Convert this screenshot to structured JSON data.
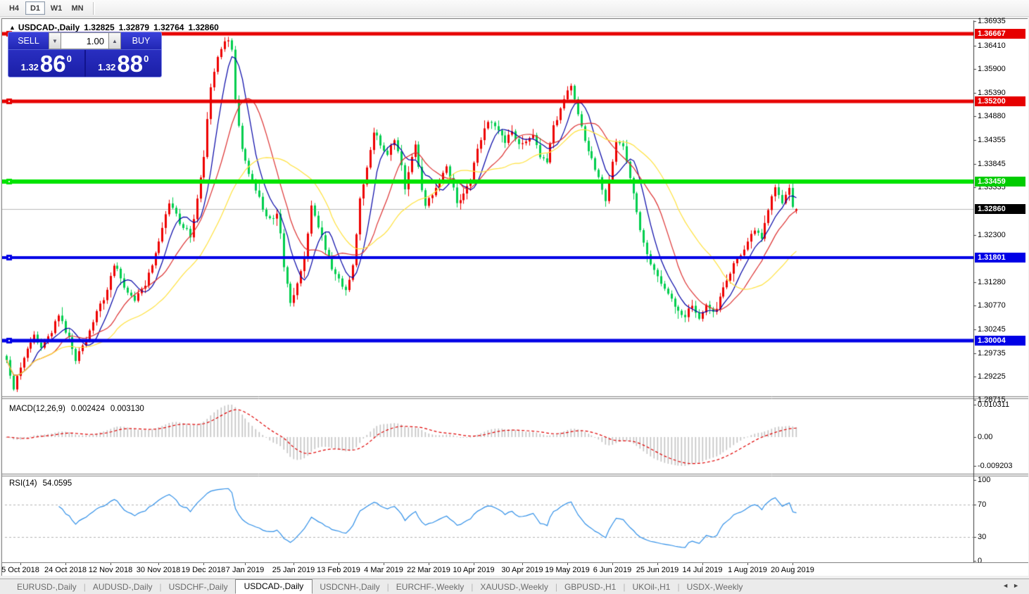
{
  "toolbar": {
    "timeframes": [
      {
        "label": "H4",
        "active": false
      },
      {
        "label": "D1",
        "active": true
      },
      {
        "label": "W1",
        "active": false
      },
      {
        "label": "MN",
        "active": false
      }
    ]
  },
  "chart": {
    "collapse_icon": "▲",
    "symbol_period": "USDCAD-,Daily",
    "ohlc": {
      "open": "1.32825",
      "high": "1.32879",
      "low": "1.32764",
      "close": "1.32860"
    }
  },
  "trade_panel": {
    "sell_label": "SELL",
    "buy_label": "BUY",
    "volume": "1.00",
    "spin_down_icon": "▼",
    "spin_up_icon": "▲",
    "sell_price": {
      "small": "1.32",
      "big": "86",
      "sup": "0"
    },
    "buy_price": {
      "small": "1.32",
      "big": "88",
      "sup": "0"
    }
  },
  "price_axis": {
    "ticks": [
      "1.36935",
      "1.36410",
      "1.35900",
      "1.35390",
      "1.34880",
      "1.34355",
      "1.33845",
      "1.33335",
      "1.32300",
      "1.31280",
      "1.30770",
      "1.30245",
      "1.29735",
      "1.29225",
      "1.28715"
    ],
    "badges": [
      {
        "label": "1.36667",
        "color": "#e60000"
      },
      {
        "label": "1.35200",
        "color": "#e60000"
      },
      {
        "label": "1.33459",
        "color": "#00cc00"
      },
      {
        "label": "1.32860",
        "color": "#000000"
      },
      {
        "label": "1.31801",
        "color": "#0000e6"
      },
      {
        "label": "1.30004",
        "color": "#0000e6"
      }
    ]
  },
  "date_axis": [
    "5 Oct 2018",
    "24 Oct 2018",
    "12 Nov 2018",
    "30 Nov 2018",
    "19 Dec 2018",
    "7 Jan 2019",
    "25 Jan 2019",
    "13 Feb 2019",
    "4 Mar 2019",
    "22 Mar 2019",
    "10 Apr 2019",
    "30 Apr 2019",
    "19 May 2019",
    "6 Jun 2019",
    "25 Jun 2019",
    "14 Jul 2019",
    "1 Aug 2019",
    "20 Aug 2019"
  ],
  "macd": {
    "label": "MACD(12,26,9)",
    "value_main": "0.002424",
    "value_signal": "0.003130",
    "axis": [
      "0.010311",
      "0.00",
      "-0.009203"
    ]
  },
  "rsi": {
    "label": "RSI(14)",
    "value": "54.0595",
    "axis": [
      "100",
      "70",
      "30",
      "0"
    ]
  },
  "tabs": {
    "items": [
      {
        "label": "EURUSD-,Daily",
        "active": false
      },
      {
        "label": "AUDUSD-,Daily",
        "active": false
      },
      {
        "label": "USDCHF-,Daily",
        "active": false
      },
      {
        "label": "USDCAD-,Daily",
        "active": true
      },
      {
        "label": "USDCNH-,Daily",
        "active": false
      },
      {
        "label": "EURCHF-,Weekly",
        "active": false
      },
      {
        "label": "XAUUSD-,Weekly",
        "active": false
      },
      {
        "label": "GBPUSD-,H1",
        "active": false
      },
      {
        "label": "UKOil-,H1",
        "active": false
      },
      {
        "label": "USDX-,Weekly",
        "active": false
      }
    ],
    "scroll_left": "◄",
    "scroll_right": "►"
  },
  "chart_data": {
    "type": "candlestick",
    "symbol": "USDCAD",
    "timeframe": "Daily",
    "visible_range": {
      "start": "Oct 2018",
      "end": "Aug 2019"
    },
    "y_range": [
      1.28715,
      1.36935
    ],
    "num_candles": 229,
    "last_ohlc": {
      "open": 1.32825,
      "high": 1.32879,
      "low": 1.32764,
      "close": 1.3286
    },
    "bull_color": "#ee0000",
    "bear_color": "#00ce4e",
    "price_anchors": [
      [
        0,
        1.2958
      ],
      [
        2,
        1.2896
      ],
      [
        5,
        1.2968
      ],
      [
        8,
        1.3012
      ],
      [
        10,
        1.2985
      ],
      [
        13,
        1.3022
      ],
      [
        15,
        1.3058
      ],
      [
        18,
        1.3005
      ],
      [
        20,
        1.2958
      ],
      [
        23,
        1.3005
      ],
      [
        26,
        1.3065
      ],
      [
        29,
        1.3108
      ],
      [
        31,
        1.3168
      ],
      [
        34,
        1.312
      ],
      [
        37,
        1.3088
      ],
      [
        40,
        1.3125
      ],
      [
        43,
        1.3188
      ],
      [
        45,
        1.324
      ],
      [
        47,
        1.3302
      ],
      [
        50,
        1.3258
      ],
      [
        53,
        1.323
      ],
      [
        55,
        1.3305
      ],
      [
        57,
        1.34
      ],
      [
        59,
        1.3555
      ],
      [
        61,
        1.3618
      ],
      [
        63,
        1.3645
      ],
      [
        64,
        1.3652
      ],
      [
        65,
        1.363
      ],
      [
        66,
        1.3528
      ],
      [
        67,
        1.347
      ],
      [
        68,
        1.342
      ],
      [
        70,
        1.3365
      ],
      [
        72,
        1.333
      ],
      [
        74,
        1.3288
      ],
      [
        76,
        1.3262
      ],
      [
        78,
        1.3278
      ],
      [
        79,
        1.323
      ],
      [
        80,
        1.3165
      ],
      [
        82,
        1.3085
      ],
      [
        84,
        1.3122
      ],
      [
        86,
        1.318
      ],
      [
        88,
        1.3295
      ],
      [
        90,
        1.325
      ],
      [
        92,
        1.32
      ],
      [
        94,
        1.3158
      ],
      [
        96,
        1.313
      ],
      [
        98,
        1.3108
      ],
      [
        100,
        1.3162
      ],
      [
        102,
        1.3305
      ],
      [
        104,
        1.338
      ],
      [
        106,
        1.3455
      ],
      [
        108,
        1.3428
      ],
      [
        110,
        1.3405
      ],
      [
        112,
        1.3438
      ],
      [
        114,
        1.338
      ],
      [
        115,
        1.3332
      ],
      [
        117,
        1.3398
      ],
      [
        118,
        1.3425
      ],
      [
        120,
        1.3332
      ],
      [
        121,
        1.3295
      ],
      [
        123,
        1.3318
      ],
      [
        125,
        1.3352
      ],
      [
        127,
        1.3378
      ],
      [
        129,
        1.333
      ],
      [
        130,
        1.3298
      ],
      [
        132,
        1.3318
      ],
      [
        134,
        1.3345
      ],
      [
        136,
        1.342
      ],
      [
        138,
        1.3462
      ],
      [
        140,
        1.3478
      ],
      [
        142,
        1.3452
      ],
      [
        144,
        1.3432
      ],
      [
        146,
        1.3455
      ],
      [
        148,
        1.3428
      ],
      [
        150,
        1.3438
      ],
      [
        152,
        1.3442
      ],
      [
        154,
        1.3402
      ],
      [
        156,
        1.3388
      ],
      [
        158,
        1.3465
      ],
      [
        160,
        1.3502
      ],
      [
        162,
        1.3545
      ],
      [
        163,
        1.3552
      ],
      [
        164,
        1.352
      ],
      [
        166,
        1.3462
      ],
      [
        168,
        1.3415
      ],
      [
        170,
        1.3372
      ],
      [
        172,
        1.3332
      ],
      [
        173,
        1.3298
      ],
      [
        174,
        1.3352
      ],
      [
        176,
        1.3432
      ],
      [
        178,
        1.342
      ],
      [
        180,
        1.3358
      ],
      [
        182,
        1.3278
      ],
      [
        184,
        1.3212
      ],
      [
        186,
        1.3162
      ],
      [
        188,
        1.314
      ],
      [
        190,
        1.3108
      ],
      [
        192,
        1.3088
      ],
      [
        194,
        1.3065
      ],
      [
        196,
        1.3052
      ],
      [
        198,
        1.3078
      ],
      [
        200,
        1.3048
      ],
      [
        202,
        1.3082
      ],
      [
        204,
        1.3058
      ],
      [
        206,
        1.3092
      ],
      [
        208,
        1.3132
      ],
      [
        210,
        1.3165
      ],
      [
        212,
        1.3188
      ],
      [
        214,
        1.3218
      ],
      [
        216,
        1.3242
      ],
      [
        218,
        1.3225
      ],
      [
        220,
        1.3288
      ],
      [
        222,
        1.333
      ],
      [
        224,
        1.3302
      ],
      [
        226,
        1.3332
      ],
      [
        227,
        1.3295
      ],
      [
        228,
        1.3286
      ]
    ],
    "moving_averages": [
      {
        "period": 7,
        "color": "#0000a6"
      },
      {
        "period": 14,
        "color": "#dd3030"
      },
      {
        "period": 30,
        "color": "#ffe23c"
      }
    ],
    "hlines": [
      {
        "price": 1.36667,
        "color": "#e60000",
        "width": 5
      },
      {
        "price": 1.352,
        "color": "#e60000",
        "width": 5
      },
      {
        "price": 1.33459,
        "color": "#00e400",
        "width": 6
      },
      {
        "price": 1.31801,
        "color": "#0000e6",
        "width": 4
      },
      {
        "price": 1.30004,
        "color": "#0000e6",
        "width": 5
      }
    ],
    "current_price_line": {
      "price": 1.3286,
      "color": "#b8b8b8"
    },
    "macd_params": [
      12,
      26,
      9
    ],
    "macd_range": [
      -0.009203,
      0.010311
    ],
    "macd_hist_color": "#c4c4c4",
    "macd_signal_color": "#e00000",
    "rsi_period": 14,
    "rsi_levels": [
      70,
      30
    ],
    "rsi_color": "#2f8fe8"
  }
}
